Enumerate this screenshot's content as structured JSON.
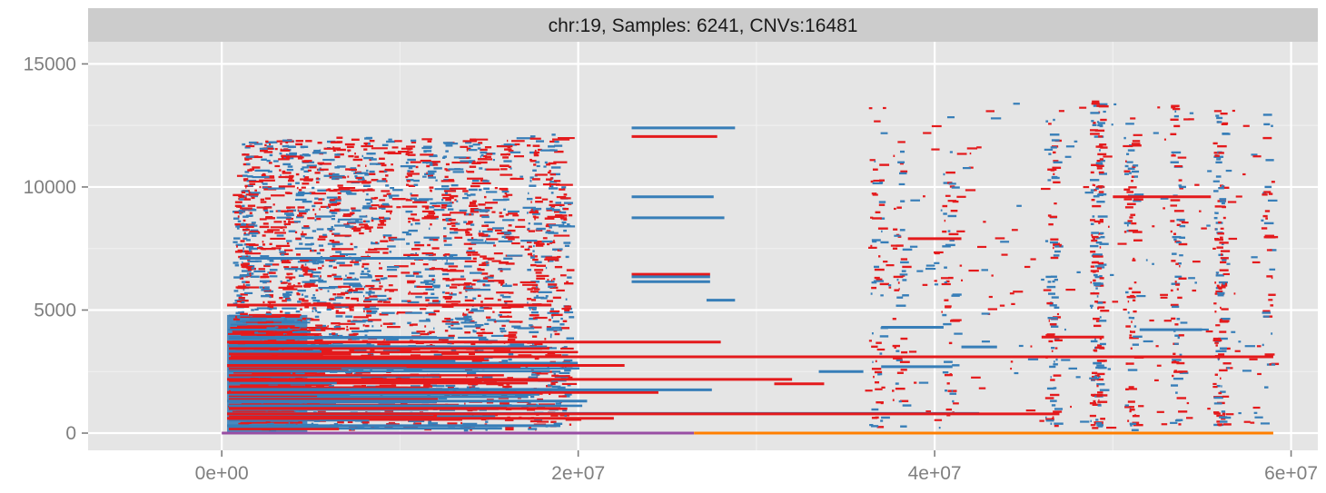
{
  "chart_data": {
    "type": "scatter",
    "title": "",
    "facet_label": "chr:19, Samples: 6241, CNVs:16481",
    "xlabel": "",
    "ylabel": "",
    "xlim": [
      -7500000,
      61500000
    ],
    "ylim": [
      -700,
      15900
    ],
    "x_ticks": [
      0,
      20000000,
      40000000,
      60000000
    ],
    "x_tick_labels": [
      "0e+00",
      "2e+07",
      "4e+07",
      "6e+07"
    ],
    "y_ticks": [
      0,
      5000,
      10000,
      15000
    ],
    "y_tick_labels": [
      "0",
      "5000",
      "10000",
      "15000"
    ],
    "grid": true,
    "legend": "none",
    "colors": {
      "panel_background": "#e5e5e5",
      "grid_major": "#ffffff",
      "grid_minor": "#f2f2f2",
      "strip_background": "#cccccc",
      "deletion": "#e41a1c",
      "duplication": "#377eb8",
      "baseline_left": "#984ea3",
      "baseline_right": "#ff7f00"
    },
    "segments": [
      {
        "class": "duplication",
        "x0": 300000,
        "x1": 19000000,
        "y": 300
      },
      {
        "class": "deletion",
        "x0": 300000,
        "x1": 22000000,
        "y": 600
      },
      {
        "class": "duplication",
        "x0": 300000,
        "x1": 42500000,
        "y": 800
      },
      {
        "class": "deletion",
        "x0": 300000,
        "x1": 47000000,
        "y": 780
      },
      {
        "class": "duplication",
        "x0": 300000,
        "x1": 20500000,
        "y": 1300
      },
      {
        "class": "deletion",
        "x0": 300000,
        "x1": 24500000,
        "y": 1650
      },
      {
        "class": "duplication",
        "x0": 500000,
        "x1": 27500000,
        "y": 1760
      },
      {
        "class": "deletion",
        "x0": 300000,
        "x1": 32000000,
        "y": 2180
      },
      {
        "class": "deletion",
        "x0": 300000,
        "x1": 22600000,
        "y": 2750
      },
      {
        "class": "deletion",
        "x0": 500000,
        "x1": 59000000,
        "y": 3100
      },
      {
        "class": "deletion",
        "x0": 300000,
        "x1": 28000000,
        "y": 3700
      },
      {
        "class": "deletion",
        "x0": 300000,
        "x1": 18500000,
        "y": 5200
      },
      {
        "class": "duplication",
        "x0": 1000000,
        "x1": 14000000,
        "y": 7100
      },
      {
        "class": "deletion",
        "x0": 23000000,
        "x1": 27400000,
        "y": 6450
      },
      {
        "class": "duplication",
        "x0": 23000000,
        "x1": 27400000,
        "y": 6350
      },
      {
        "class": "duplication",
        "x0": 23000000,
        "x1": 27400000,
        "y": 6150
      },
      {
        "class": "duplication",
        "x0": 23000000,
        "x1": 28200000,
        "y": 8750
      },
      {
        "class": "duplication",
        "x0": 23000000,
        "x1": 27600000,
        "y": 9600
      },
      {
        "class": "deletion",
        "x0": 23000000,
        "x1": 27800000,
        "y": 12050
      },
      {
        "class": "duplication",
        "x0": 23000000,
        "x1": 28800000,
        "y": 12400
      },
      {
        "class": "duplication",
        "x0": 27200000,
        "x1": 28800000,
        "y": 5400
      },
      {
        "class": "deletion",
        "x0": 31000000,
        "x1": 33800000,
        "y": 2000
      },
      {
        "class": "duplication",
        "x0": 33500000,
        "x1": 36000000,
        "y": 2500
      },
      {
        "class": "duplication",
        "x0": 37000000,
        "x1": 41000000,
        "y": 2700
      },
      {
        "class": "duplication",
        "x0": 37000000,
        "x1": 40500000,
        "y": 4300
      },
      {
        "class": "deletion",
        "x0": 38500000,
        "x1": 41500000,
        "y": 7900
      },
      {
        "class": "duplication",
        "x0": 41500000,
        "x1": 43500000,
        "y": 3500
      },
      {
        "class": "deletion",
        "x0": 46000000,
        "x1": 49500000,
        "y": 3900
      },
      {
        "class": "duplication",
        "x0": 51500000,
        "x1": 55000000,
        "y": 4200
      },
      {
        "class": "deletion",
        "x0": 50000000,
        "x1": 55500000,
        "y": 9600
      }
    ],
    "baselines": [
      {
        "class": "baseline_left",
        "x0": 0,
        "x1": 26500000,
        "y": 0
      },
      {
        "class": "baseline_right",
        "x0": 26500000,
        "x1": 59000000,
        "y": 0
      }
    ],
    "density_columns": [
      {
        "x": 900000,
        "y0": 4500,
        "y1": 10100,
        "density": 14
      },
      {
        "x": 1400000,
        "y0": 6000,
        "y1": 11800,
        "density": 15
      },
      {
        "x": 2400000,
        "y0": 100,
        "y1": 12000,
        "density": 20
      },
      {
        "x": 3500000,
        "y0": 100,
        "y1": 12000,
        "density": 20
      },
      {
        "x": 4400000,
        "y0": 100,
        "y1": 12000,
        "density": 20
      },
      {
        "x": 5200000,
        "y0": 100,
        "y1": 11900,
        "density": 18
      },
      {
        "x": 6200000,
        "y0": 100,
        "y1": 12000,
        "density": 18
      },
      {
        "x": 7200000,
        "y0": 100,
        "y1": 12000,
        "density": 16
      },
      {
        "x": 8100000,
        "y0": 100,
        "y1": 12000,
        "density": 16
      },
      {
        "x": 9100000,
        "y0": 100,
        "y1": 12000,
        "density": 14
      },
      {
        "x": 10600000,
        "y0": 100,
        "y1": 12000,
        "density": 14
      },
      {
        "x": 11600000,
        "y0": 100,
        "y1": 12000,
        "density": 18
      },
      {
        "x": 12600000,
        "y0": 100,
        "y1": 12000,
        "density": 14
      },
      {
        "x": 13800000,
        "y0": 100,
        "y1": 12000,
        "density": 18
      },
      {
        "x": 14600000,
        "y0": 100,
        "y1": 12000,
        "density": 14
      },
      {
        "x": 15800000,
        "y0": 100,
        "y1": 12000,
        "density": 12
      },
      {
        "x": 17400000,
        "y0": 100,
        "y1": 12200,
        "density": 20
      },
      {
        "x": 18400000,
        "y0": 100,
        "y1": 12200,
        "density": 16
      },
      {
        "x": 19200000,
        "y0": 100,
        "y1": 10000,
        "density": 10
      },
      {
        "x": 36700000,
        "y0": 200,
        "y1": 11000,
        "density": 8
      },
      {
        "x": 37900000,
        "y0": 200,
        "y1": 11500,
        "density": 8
      },
      {
        "x": 40700000,
        "y0": 200,
        "y1": 11000,
        "density": 8
      },
      {
        "x": 46500000,
        "y0": 200,
        "y1": 13000,
        "density": 14
      },
      {
        "x": 49000000,
        "y0": 100,
        "y1": 13500,
        "density": 30
      },
      {
        "x": 50900000,
        "y0": 100,
        "y1": 12000,
        "density": 14
      },
      {
        "x": 53500000,
        "y0": 300,
        "y1": 13500,
        "density": 12
      },
      {
        "x": 55900000,
        "y0": 100,
        "y1": 13500,
        "density": 20
      },
      {
        "x": 58600000,
        "y0": 1000,
        "y1": 13000,
        "density": 6
      }
    ],
    "dense_band": {
      "x0": 300000,
      "x1": 4800000,
      "y0": 0,
      "y1": 4800,
      "color": "duplication"
    }
  }
}
